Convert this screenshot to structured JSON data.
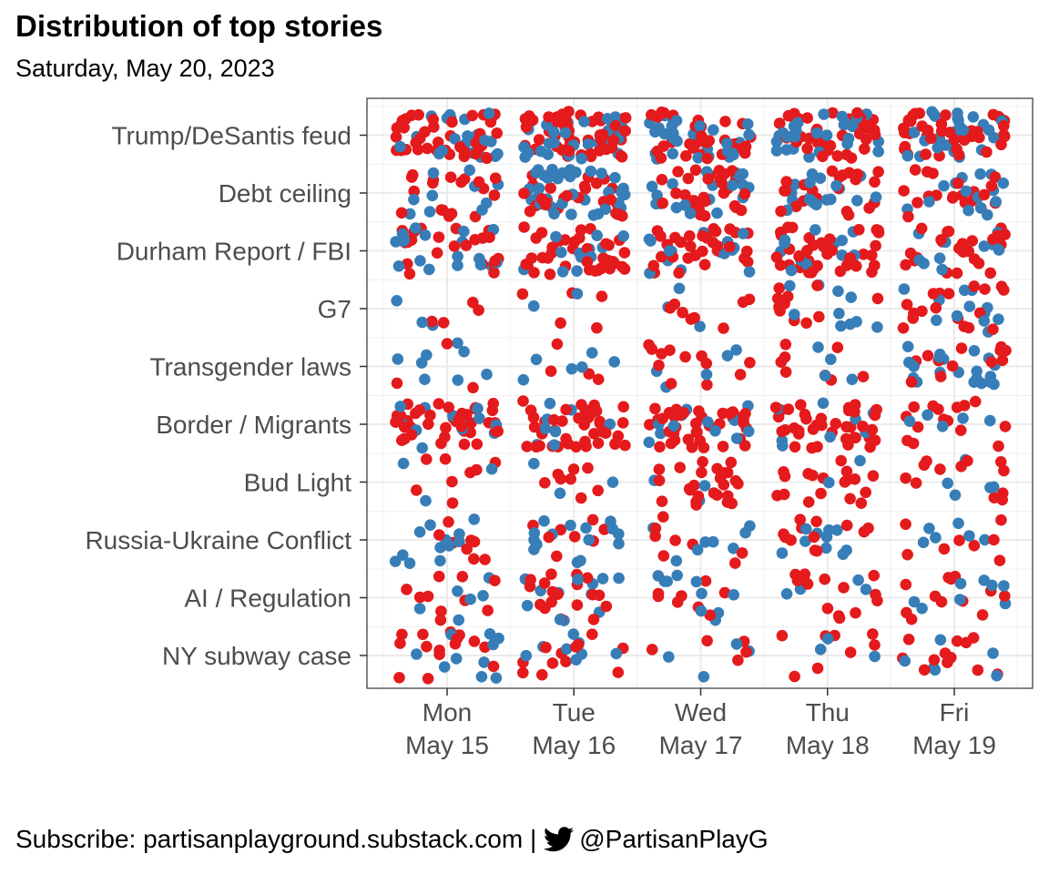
{
  "chart_data": {
    "type": "scatter",
    "title": "Distribution of top stories",
    "subtitle": "Saturday, May 20, 2023",
    "caption": {
      "text_before": "Subscribe: partisanplayground.substack.com |",
      "icon": "twitter-bird-icon",
      "handle": "@PartisanPlayG"
    },
    "x_categories": [
      {
        "day": "Mon",
        "date": "May 15"
      },
      {
        "day": "Tue",
        "date": "May 16"
      },
      {
        "day": "Wed",
        "date": "May 17"
      },
      {
        "day": "Thu",
        "date": "May 18"
      },
      {
        "day": "Fri",
        "date": "May 19"
      }
    ],
    "y_categories": [
      "Trump/DeSantis feud",
      "Debt ceiling",
      "Durham Report / FBI",
      "G7",
      "Transgender laws",
      "Border / Migrants",
      "Bud Light",
      "Russia-Ukraine Conflict",
      "AI / Regulation",
      "NY subway case"
    ],
    "series_colors": {
      "red": "#e41a1c",
      "blue": "#377eb8"
    },
    "jitter": "points jittered within each day/topic cell",
    "grid": "on",
    "legend": "none",
    "counts": {
      "red": [
        [
          40,
          55,
          35,
          40,
          42
        ],
        [
          18,
          25,
          30,
          22,
          20
        ],
        [
          22,
          38,
          30,
          40,
          25
        ],
        [
          4,
          5,
          8,
          12,
          18
        ],
        [
          3,
          4,
          12,
          8,
          12
        ],
        [
          40,
          42,
          40,
          40,
          15
        ],
        [
          8,
          8,
          25,
          18,
          12
        ],
        [
          8,
          8,
          8,
          12,
          8
        ],
        [
          10,
          18,
          8,
          14,
          12
        ],
        [
          15,
          12,
          5,
          8,
          12
        ]
      ],
      "blue": [
        [
          20,
          30,
          30,
          30,
          25
        ],
        [
          10,
          35,
          20,
          18,
          15
        ],
        [
          18,
          12,
          15,
          12,
          12
        ],
        [
          3,
          2,
          3,
          10,
          12
        ],
        [
          8,
          6,
          5,
          4,
          20
        ],
        [
          12,
          8,
          12,
          8,
          5
        ],
        [
          3,
          3,
          3,
          2,
          5
        ],
        [
          12,
          15,
          8,
          10,
          6
        ],
        [
          6,
          12,
          10,
          4,
          8
        ],
        [
          10,
          8,
          4,
          3,
          6
        ]
      ]
    }
  }
}
